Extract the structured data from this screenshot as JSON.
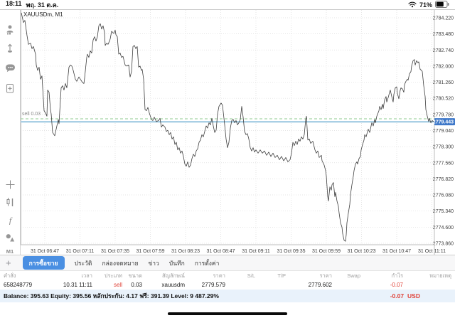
{
  "status_bar": {
    "time": "18:11",
    "date": "พฤ. 31 ต.ค.",
    "battery_pct": "71%"
  },
  "sidebar": {
    "icons": [
      "account-icon",
      "pin-icon",
      "chat-icon",
      "new-order-icon",
      "crosshair-icon",
      "chart-type-icon",
      "indicators-icon",
      "objects-icon"
    ],
    "timeframe": "M1"
  },
  "tabs": {
    "plus": "+",
    "items": [
      "การซื้อขาย",
      "ประวัติ",
      "กล่องจดหมาย",
      "ข่าว",
      "บันทึก",
      "การตั้งค่า"
    ],
    "active": "การซื้อขาย"
  },
  "table": {
    "headers": [
      "คำสั่ง",
      "เวลา",
      "ประเภท",
      "ขนาด",
      "สัญลักษณ์",
      "ราคา",
      "S/L",
      "T/P",
      "ราคา",
      "Swap",
      "กำไร",
      "หมายเหตุ"
    ],
    "row": [
      "658248779",
      "10.31 11:11",
      "sell",
      "0.03",
      "xauusdm",
      "2779.579",
      "",
      "",
      "2779.602",
      "",
      "-0.07",
      ""
    ]
  },
  "account": {
    "summary": "Balance: 395.63 Equity: 395.56 หลักประกัน: 4.17 ฟรี: 391.39 Level: 9 487.29%",
    "total_profit": "-0.07",
    "total_currency": "USD"
  },
  "colors": {
    "accent_blue": "#4a8fe2",
    "price_tag_blue": "#3e78c9",
    "loss_red": "#e0443a",
    "sell_line_green": "#8fcb8f",
    "bid_line_blue": "#a9cfe5"
  },
  "chart_data": {
    "type": "line",
    "title": "XAUUSDm, M1",
    "x_axis_labels": [
      "31 Oct 06:47",
      "31 Oct 07:11",
      "31 Oct 07:35",
      "31 Oct 07:59",
      "31 Oct 08:23",
      "31 Oct 08:47",
      "31 Oct 09:11",
      "31 Oct 09:35",
      "31 Oct 09:59",
      "31 Oct 10:23",
      "31 Oct 10:47",
      "31 Oct 11:11"
    ],
    "y_axis": {
      "top_tick": 2784.22,
      "tick_interval": 0.74,
      "ticks": [
        "2784.220",
        "2783.480",
        "2782.740",
        "2782.000",
        "2781.260",
        "2780.520",
        "2779.780",
        "2779.040",
        "2778.300",
        "2777.560",
        "2776.820",
        "2776.080",
        "2775.340",
        "2774.600",
        "2773.860"
      ]
    },
    "levels": {
      "sell_price": 2779.579,
      "sell_label": "sell 0.03",
      "bid_price": 2779.443,
      "bid_label": "2779.443"
    },
    "series": [
      [
        30,
        2784.45
      ],
      [
        33,
        2784.0
      ],
      [
        35,
        2784.1
      ],
      [
        38,
        2783.4
      ],
      [
        40,
        2783.0
      ],
      [
        43,
        2783.05
      ],
      [
        45,
        2782.8
      ],
      [
        47,
        2782.9
      ],
      [
        50,
        2782.55
      ],
      [
        51,
        2782.05
      ],
      [
        53,
        2781.8
      ],
      [
        55,
        2781.95
      ],
      [
        57,
        2781.4
      ],
      [
        59,
        2781.55
      ],
      [
        62,
        2779.95
      ],
      [
        64,
        2779.85
      ],
      [
        66,
        2779.7
      ],
      [
        67,
        2780.9
      ],
      [
        69,
        2780.8
      ],
      [
        71,
        2780.0
      ],
      [
        72,
        2779.8
      ],
      [
        74,
        2778.95
      ],
      [
        77,
        2778.8
      ],
      [
        79,
        2779.1
      ],
      [
        82,
        2779.55
      ],
      [
        83,
        2779.35
      ],
      [
        86,
        2781.0
      ],
      [
        88,
        2781.1
      ],
      [
        90,
        2780.9
      ],
      [
        92,
        2781.2
      ],
      [
        94,
        2781.0
      ],
      [
        97,
        2781.95
      ],
      [
        99,
        2782.05
      ],
      [
        101,
        2782.0
      ],
      [
        103,
        2781.8
      ],
      [
        106,
        2781.4
      ],
      [
        108,
        2781.3
      ],
      [
        111,
        2781.5
      ],
      [
        113,
        2781.4
      ],
      [
        116,
        2781.25
      ],
      [
        118,
        2781.2
      ],
      [
        119,
        2781.45
      ],
      [
        122,
        2782.4
      ],
      [
        123,
        2782.55
      ],
      [
        125,
        2782.4
      ],
      [
        127,
        2782.7
      ],
      [
        129,
        2782.6
      ],
      [
        131,
        2783.2
      ],
      [
        133,
        2783.35
      ],
      [
        135,
        2783.15
      ],
      [
        137,
        2783.35
      ],
      [
        139,
        2783.85
      ],
      [
        141,
        2783.95
      ],
      [
        143,
        2783.7
      ],
      [
        145,
        2783.85
      ],
      [
        147,
        2783.55
      ],
      [
        148,
        2782.95
      ],
      [
        150,
        2783.05
      ],
      [
        152,
        2783.0
      ],
      [
        154,
        2783.15
      ],
      [
        155,
        2783.25
      ],
      [
        157,
        2783.6
      ],
      [
        160,
        2783.5
      ],
      [
        162,
        2783.65
      ],
      [
        163,
        2783.45
      ],
      [
        165,
        2783.35
      ],
      [
        167,
        2782.55
      ],
      [
        169,
        2782.6
      ],
      [
        171,
        2782.4
      ],
      [
        173,
        2782.45
      ],
      [
        176,
        2782.05
      ],
      [
        178,
        2782.0
      ],
      [
        181,
        2782.05
      ],
      [
        183,
        2781.5
      ],
      [
        185,
        2781.75
      ],
      [
        187,
        2782.9
      ],
      [
        189,
        2782.95
      ],
      [
        191,
        2782.8
      ],
      [
        193,
        2782.9
      ],
      [
        195,
        2781.95
      ],
      [
        197,
        2782.0
      ],
      [
        199,
        2781.8
      ],
      [
        200,
        2781.85
      ],
      [
        202,
        2781.4
      ],
      [
        204,
        2780.0
      ],
      [
        206,
        2779.95
      ],
      [
        208,
        2780.1
      ],
      [
        210,
        2779.85
      ],
      [
        213,
        2779.55
      ],
      [
        215,
        2779.5
      ],
      [
        217,
        2779.65
      ],
      [
        220,
        2779.45
      ],
      [
        223,
        2779.5
      ],
      [
        225,
        2779.6
      ],
      [
        227,
        2779.2
      ],
      [
        229,
        2779.3
      ],
      [
        232,
        2779.2
      ],
      [
        234,
        2779.0
      ],
      [
        236,
        2779.05
      ],
      [
        238,
        2778.85
      ],
      [
        240,
        2778.95
      ],
      [
        242,
        2778.65
      ],
      [
        244,
        2778.75
      ],
      [
        246,
        2778.4
      ],
      [
        248,
        2778.5
      ],
      [
        250,
        2778.15
      ],
      [
        252,
        2778.25
      ],
      [
        254,
        2778.0
      ],
      [
        256,
        2778.1
      ],
      [
        258,
        2777.85
      ],
      [
        260,
        2777.5
      ],
      [
        262,
        2777.4
      ],
      [
        264,
        2777.6
      ],
      [
        266,
        2777.35
      ],
      [
        268,
        2777.45
      ],
      [
        270,
        2777.75
      ],
      [
        272,
        2777.95
      ],
      [
        274,
        2777.85
      ],
      [
        276,
        2778.1
      ],
      [
        278,
        2778.2
      ],
      [
        280,
        2778.5
      ],
      [
        282,
        2778.6
      ],
      [
        284,
        2778.85
      ],
      [
        286,
        2778.75
      ],
      [
        288,
        2779.0
      ],
      [
        290,
        2779.25
      ],
      [
        292,
        2779.15
      ],
      [
        294,
        2779.4
      ],
      [
        296,
        2779.3
      ],
      [
        298,
        2779.6
      ],
      [
        300,
        2779.25
      ],
      [
        302,
        2778.95
      ],
      [
        304,
        2779.05
      ],
      [
        306,
        2779.8
      ],
      [
        308,
        2780.15
      ],
      [
        311,
        2780.3
      ],
      [
        313,
        2780.2
      ],
      [
        316,
        2779.3
      ],
      [
        318,
        2778.65
      ],
      [
        320,
        2778.25
      ],
      [
        322,
        2778.5
      ],
      [
        324,
        2779.15
      ],
      [
        326,
        2779.5
      ],
      [
        328,
        2779.55
      ],
      [
        330,
        2779.4
      ],
      [
        332,
        2779.5
      ],
      [
        334,
        2779.3
      ],
      [
        336,
        2779.4
      ],
      [
        338,
        2779.55
      ],
      [
        340,
        2780.15
      ],
      [
        342,
        2779.65
      ],
      [
        344,
        2779.0
      ],
      [
        346,
        2778.85
      ],
      [
        348,
        2778.9
      ],
      [
        350,
        2778.65
      ],
      [
        352,
        2778.25
      ],
      [
        354,
        2778.1
      ],
      [
        356,
        2778.25
      ],
      [
        358,
        2778.05
      ],
      [
        360,
        2778.15
      ],
      [
        363,
        2778.0
      ],
      [
        366,
        2778.15
      ],
      [
        369,
        2778.0
      ],
      [
        372,
        2778.1
      ],
      [
        375,
        2777.9
      ],
      [
        378,
        2778.05
      ],
      [
        381,
        2777.85
      ],
      [
        384,
        2778.0
      ],
      [
        387,
        2777.8
      ],
      [
        390,
        2777.9
      ],
      [
        393,
        2777.7
      ],
      [
        396,
        2777.85
      ],
      [
        399,
        2777.65
      ],
      [
        402,
        2777.8
      ],
      [
        405,
        2777.6
      ],
      [
        408,
        2777.7
      ],
      [
        410,
        2778.0
      ],
      [
        412,
        2778.5
      ],
      [
        414,
        2778.35
      ],
      [
        416,
        2778.55
      ],
      [
        418,
        2778.4
      ],
      [
        420,
        2778.65
      ],
      [
        422,
        2778.55
      ],
      [
        424,
        2778.75
      ],
      [
        426,
        2778.65
      ],
      [
        428,
        2778.85
      ],
      [
        430,
        2779.55
      ],
      [
        431,
        2779.7
      ],
      [
        433,
        2778.6
      ],
      [
        435,
        2778.65
      ],
      [
        437,
        2778.45
      ],
      [
        440,
        2778.55
      ],
      [
        443,
        2778.15
      ],
      [
        445,
        2778.0
      ],
      [
        447,
        2778.1
      ],
      [
        449,
        2777.8
      ],
      [
        452,
        2777.9
      ],
      [
        453,
        2777.65
      ],
      [
        456,
        2777.45
      ],
      [
        458,
        2777.2
      ],
      [
        459,
        2776.95
      ],
      [
        461,
        2776.0
      ],
      [
        462,
        2775.8
      ],
      [
        464,
        2776.45
      ],
      [
        466,
        2776.3
      ],
      [
        467,
        2776.55
      ],
      [
        469,
        2776.65
      ],
      [
        471,
        2776.0
      ],
      [
        472,
        2776.2
      ],
      [
        474,
        2775.8
      ],
      [
        476,
        2775.55
      ],
      [
        477,
        2775.25
      ],
      [
        479,
        2774.8
      ],
      [
        481,
        2774.6
      ],
      [
        482,
        2774.3
      ],
      [
        484,
        2774.0
      ],
      [
        486,
        2773.95
      ],
      [
        487,
        2774.25
      ],
      [
        488,
        2774.8
      ],
      [
        490,
        2775.25
      ],
      [
        492,
        2775.65
      ],
      [
        493,
        2776.1
      ],
      [
        495,
        2776.55
      ],
      [
        497,
        2776.95
      ],
      [
        498,
        2777.2
      ],
      [
        500,
        2777.5
      ],
      [
        502,
        2777.6
      ],
      [
        503,
        2777.5
      ],
      [
        505,
        2777.75
      ],
      [
        507,
        2777.85
      ],
      [
        508,
        2778.15
      ],
      [
        510,
        2778.4
      ],
      [
        512,
        2778.6
      ],
      [
        513,
        2778.85
      ],
      [
        515,
        2778.75
      ],
      [
        517,
        2779.0
      ],
      [
        518,
        2779.1
      ],
      [
        520,
        2778.95
      ],
      [
        522,
        2779.25
      ],
      [
        523,
        2779.4
      ],
      [
        525,
        2779.25
      ],
      [
        527,
        2779.55
      ],
      [
        528,
        2779.4
      ],
      [
        530,
        2779.7
      ],
      [
        533,
        2779.95
      ],
      [
        534,
        2780.15
      ],
      [
        536,
        2780.0
      ],
      [
        538,
        2780.25
      ],
      [
        539,
        2780.05
      ],
      [
        541,
        2780.45
      ],
      [
        543,
        2780.6
      ],
      [
        544,
        2780.35
      ],
      [
        546,
        2780.55
      ],
      [
        548,
        2780.8
      ],
      [
        549,
        2780.9
      ],
      [
        551,
        2780.6
      ],
      [
        553,
        2780.35
      ],
      [
        554,
        2780.7
      ],
      [
        556,
        2781.0
      ],
      [
        558,
        2781.05
      ],
      [
        559,
        2780.75
      ],
      [
        561,
        2780.5
      ],
      [
        563,
        2780.9
      ],
      [
        564,
        2781.0
      ],
      [
        566,
        2780.95
      ],
      [
        568,
        2780.8
      ],
      [
        569,
        2781.15
      ],
      [
        571,
        2781.3
      ],
      [
        573,
        2781.4
      ],
      [
        574,
        2781.35
      ],
      [
        576,
        2781.65
      ],
      [
        578,
        2781.75
      ],
      [
        579,
        2782.0
      ],
      [
        581,
        2782.25
      ],
      [
        583,
        2782.3
      ],
      [
        584,
        2782.05
      ],
      [
        586,
        2782.25
      ],
      [
        588,
        2782.15
      ],
      [
        589,
        2782.2
      ],
      [
        591,
        2781.85
      ],
      [
        593,
        2781.8
      ],
      [
        594,
        2781.75
      ],
      [
        596,
        2781.1
      ],
      [
        598,
        2780.6
      ],
      [
        599,
        2780.0
      ],
      [
        601,
        2779.7
      ],
      [
        603,
        2779.45
      ],
      [
        604,
        2779.6
      ],
      [
        606,
        2779.4
      ],
      [
        608,
        2779.5
      ],
      [
        610,
        2779.44
      ]
    ]
  }
}
